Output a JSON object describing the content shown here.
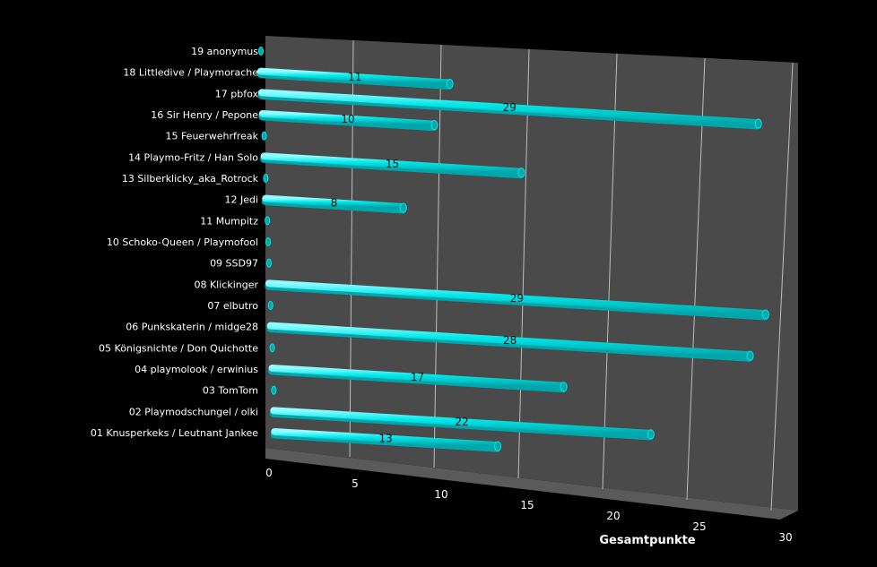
{
  "chart_data": {
    "type": "bar",
    "orientation": "horizontal",
    "title": "",
    "xlabel": "Gesamtpunkte",
    "ylabel": "",
    "xlim": [
      0,
      30
    ],
    "xticks": [
      0,
      5,
      10,
      15,
      20,
      25,
      30
    ],
    "grid": true,
    "legend": "none",
    "colors": {
      "background": "#000000",
      "plot_back": "#4a4a4a",
      "plot_floor": "#5a5a5a",
      "bar": "#00e8ea",
      "bar_dark": "#00a6aa",
      "grid": "#bdbdbd",
      "text": "#ffffff"
    },
    "categories": [
      "19 anonymus",
      "18 Littledive / Playmorache",
      "17 pbfox",
      "16 Sir Henry / Pepone",
      "15 Feuerwehrfreak",
      "14 Playmo-Fritz / Han Solo",
      "13 Silberklicky_aka_Rotrock",
      "12 Jedi",
      "11 Mumpitz",
      "10 Schoko-Queen / Playmofool",
      "09 SSD97",
      "08 Klickinger",
      "07 elbutro",
      "06 Punkskaterin / midge28",
      "05 Königsnichte / Don Quichotte",
      "04 playmolook / erwinius",
      "03 TomTom",
      "02 Playmodschungel / olki",
      "01 Knusperkeks / Leutnant Jankee"
    ],
    "values": [
      0,
      11,
      29,
      10,
      0,
      15,
      0,
      8,
      0,
      0,
      0,
      29,
      0,
      28,
      0,
      17,
      0,
      22,
      13
    ],
    "data_labels": [
      "",
      "11",
      "29",
      "10",
      "",
      "15",
      "",
      "8",
      "",
      "",
      "",
      "29",
      "",
      "28",
      "",
      "17",
      "",
      "22",
      "13"
    ]
  }
}
